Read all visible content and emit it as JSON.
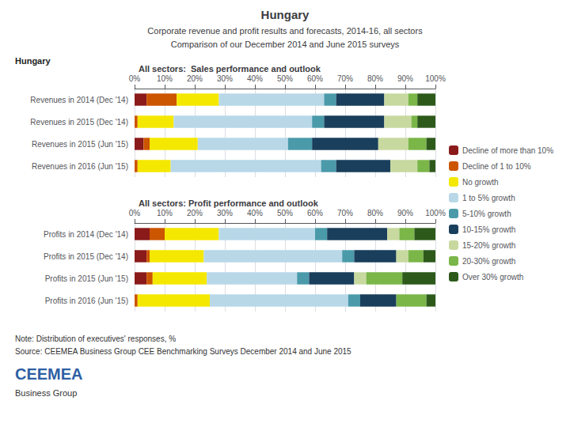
{
  "title": "Hungary",
  "subtitle": [
    "Corporate revenue and profit results and forecasts, 2014-16, all sectors",
    "Comparison of our December 2014 and June 2015 surveys"
  ],
  "annotations": [
    "Hungary",
    "Note: Distribution of executives' responses, %",
    "Source: CEEMEA Business Group CEE Benchmarking Surveys December 2014 and June 2015",
    "CEEMEA",
    "Business Group"
  ],
  "chart_data": [
    {
      "type": "bar",
      "orientation": "horizontal",
      "stacked": true,
      "grid": true,
      "legend": "right",
      "title": "All sectors:  Sales performance and outlook",
      "categories": [
        "Revenues in 2014 (Dec '14)",
        "Revenues in 2015 (Dec '14)",
        "Revenues in 2015 (Jun '15)",
        "Revenues in 2016 (Jun '15)"
      ],
      "xlim": [
        0,
        100
      ],
      "xticks": [
        {
          "value": 0,
          "label": "0%"
        },
        {
          "value": 10,
          "label": "10%"
        },
        {
          "value": 20,
          "label": "20%"
        },
        {
          "value": 30,
          "label": "30%"
        },
        {
          "value": 40,
          "label": "40%"
        },
        {
          "value": 50,
          "label": "50%"
        },
        {
          "value": 60,
          "label": "60%"
        },
        {
          "value": 70,
          "label": "70%"
        },
        {
          "value": 80,
          "label": "80%"
        },
        {
          "value": 90,
          "label": "90%"
        },
        {
          "value": 100,
          "label": "100%"
        }
      ],
      "series": [
        {
          "name": "Decline of more than 10%",
          "color": "#8B1a1a",
          "values": [
            4,
            0,
            3,
            0
          ]
        },
        {
          "name": "Decline of 1 to 10%",
          "color": "#cc5500",
          "values": [
            10,
            1,
            2,
            1
          ]
        },
        {
          "name": "No growth",
          "color": "#f5e800",
          "values": [
            14,
            12,
            16,
            11
          ]
        },
        {
          "name": "1 to 5% growth",
          "color": "#b8d8e8",
          "values": [
            35,
            46,
            30,
            50
          ]
        },
        {
          "name": "5-10% growth",
          "color": "#4a9aaa",
          "values": [
            4,
            4,
            8,
            5
          ]
        },
        {
          "name": "10-15% growth",
          "color": "#1a3f5c",
          "values": [
            16,
            20,
            22,
            18
          ]
        },
        {
          "name": "15-20% growth",
          "color": "#c8d9a0",
          "values": [
            8,
            9,
            10,
            9
          ]
        },
        {
          "name": "20-30% growth",
          "color": "#7ab648",
          "values": [
            3,
            2,
            6,
            4
          ]
        },
        {
          "name": "Over 30% growth",
          "color": "#2d5a1b",
          "values": [
            6,
            6,
            3,
            2
          ]
        }
      ]
    },
    {
      "type": "bar",
      "orientation": "horizontal",
      "stacked": true,
      "grid": true,
      "legend": "right",
      "title": "All sectors: Profit performance and outlook",
      "categories": [
        "Profits in 2014 (Dec '14)",
        "Profits in 2015 (Dec '14)",
        "Profits in 2015 (Jun '15)",
        "Profits in 2016 (Jun '15)"
      ],
      "xlim": [
        0,
        100
      ],
      "xticks": [
        {
          "value": 0,
          "label": "0%"
        },
        {
          "value": 10,
          "label": "10%"
        },
        {
          "value": 20,
          "label": "20%"
        },
        {
          "value": 30,
          "label": "30%"
        },
        {
          "value": 40,
          "label": "40%"
        },
        {
          "value": 50,
          "label": "50%"
        },
        {
          "value": 60,
          "label": "60%"
        },
        {
          "value": 70,
          "label": "70%"
        },
        {
          "value": 80,
          "label": "80%"
        },
        {
          "value": 90,
          "label": "90%"
        },
        {
          "value": 100,
          "label": "100%"
        }
      ],
      "series": [
        {
          "name": "Decline of more than 10%",
          "color": "#8B1a1a",
          "values": [
            5,
            4,
            4,
            0
          ]
        },
        {
          "name": "Decline of 1 to 10%",
          "color": "#cc5500",
          "values": [
            5,
            1,
            2,
            1
          ]
        },
        {
          "name": "No growth",
          "color": "#f5e800",
          "values": [
            18,
            18,
            18,
            24
          ]
        },
        {
          "name": "1 to 5% growth",
          "color": "#b8d8e8",
          "values": [
            32,
            46,
            30,
            46
          ]
        },
        {
          "name": "5-10% growth",
          "color": "#4a9aaa",
          "values": [
            4,
            4,
            4,
            4
          ]
        },
        {
          "name": "10-15% growth",
          "color": "#1a3f5c",
          "values": [
            20,
            14,
            15,
            12
          ]
        },
        {
          "name": "15-20% growth",
          "color": "#c8d9a0",
          "values": [
            4,
            4,
            4,
            0
          ]
        },
        {
          "name": "20-30% growth",
          "color": "#7ab648",
          "values": [
            5,
            5,
            12,
            10
          ]
        },
        {
          "name": "Over 30% growth",
          "color": "#2d5a1b",
          "values": [
            7,
            4,
            11,
            3
          ]
        }
      ]
    }
  ]
}
